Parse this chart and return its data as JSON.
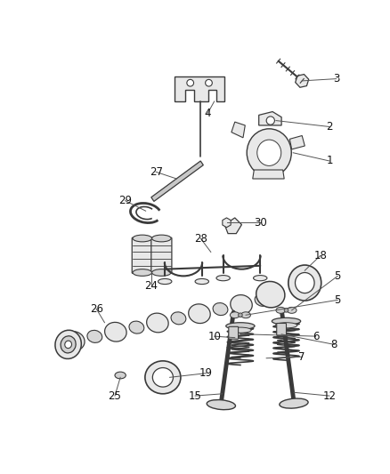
{
  "background_color": "#ffffff",
  "fig_width": 4.38,
  "fig_height": 5.33,
  "dpi": 100,
  "line_color": "#3a3a3a",
  "fill_color": "#e8e8e8",
  "label_color": "#222222"
}
